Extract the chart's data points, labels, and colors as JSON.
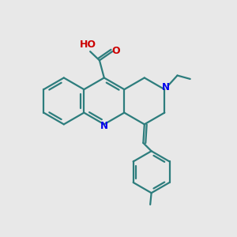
{
  "background_color": "#e8e8e8",
  "bond_color": "#2d7d7d",
  "nitrogen_color": "#0000ee",
  "oxygen_color": "#cc0000",
  "line_width": 1.6,
  "figsize": [
    3.0,
    3.0
  ],
  "dpi": 100,
  "xlim": [
    0,
    10
  ],
  "ylim": [
    0,
    10
  ]
}
